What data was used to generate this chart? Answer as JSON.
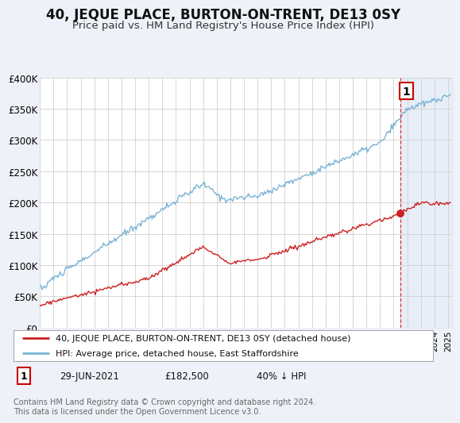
{
  "title": "40, JEQUE PLACE, BURTON-ON-TRENT, DE13 0SY",
  "subtitle": "Price paid vs. HM Land Registry's House Price Index (HPI)",
  "ylim": [
    0,
    400000
  ],
  "yticks": [
    0,
    50000,
    100000,
    150000,
    200000,
    250000,
    300000,
    350000,
    400000
  ],
  "ytick_labels": [
    "£0",
    "£50K",
    "£100K",
    "£150K",
    "£200K",
    "£250K",
    "£300K",
    "£350K",
    "£400K"
  ],
  "xlim_start": 1995.0,
  "xlim_end": 2025.3,
  "hpi_color": "#7ab3d4",
  "price_color": "#cc2222",
  "vline_color": "#cc2222",
  "vline_x": 2021.5,
  "sale_marker_x": 2021.5,
  "sale_marker_y": 182500,
  "sale_date": "29-JUN-2021",
  "sale_price": "£182,500",
  "sale_hpi_diff": "40% ↓ HPI",
  "legend_label_price": "40, JEQUE PLACE, BURTON-ON-TRENT, DE13 0SY (detached house)",
  "legend_label_hpi": "HPI: Average price, detached house, East Staffordshire",
  "annotation_label": "1",
  "footnote": "Contains HM Land Registry data © Crown copyright and database right 2024.\nThis data is licensed under the Open Government Licence v3.0.",
  "background_color": "#eef2f8",
  "plot_bg_color": "#ffffff",
  "shade_color": "#dde8f5",
  "title_fontsize": 12,
  "subtitle_fontsize": 9.5
}
